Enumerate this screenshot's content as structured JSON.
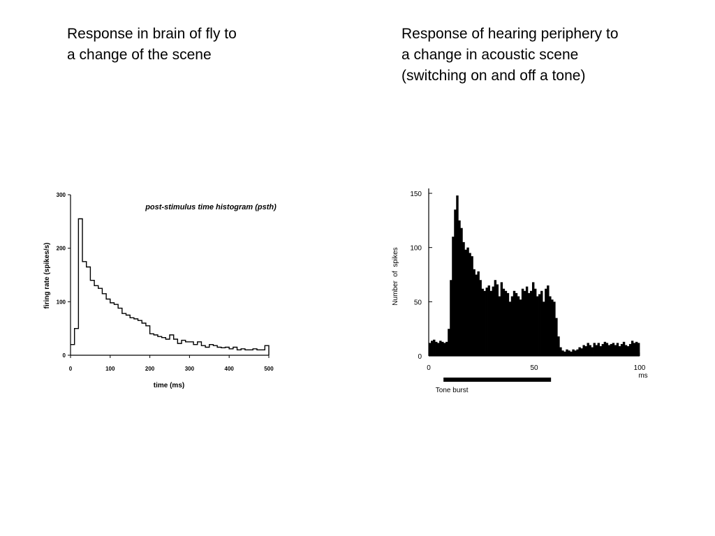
{
  "slide": {
    "left_caption": [
      "Response in brain of fly to",
      "a change of the scene"
    ],
    "right_caption": [
      "Response of hearing periphery to",
      "a change in acoustic scene",
      "(switching on and off a tone)"
    ]
  },
  "chart_data": [
    {
      "type": "line",
      "style": "step-histogram",
      "title": "post-stimulus time histogram (psth)",
      "xlabel": "time (ms)",
      "ylabel": "firing rate (spikes/s)",
      "xlim": [
        0,
        500
      ],
      "ylim": [
        0,
        300
      ],
      "xticks": [
        0,
        100,
        200,
        300,
        400,
        500
      ],
      "yticks": [
        0,
        100,
        200,
        300
      ],
      "bin_width": 10,
      "bin_start": 0,
      "values": [
        20,
        50,
        255,
        175,
        165,
        140,
        130,
        125,
        115,
        105,
        98,
        95,
        88,
        78,
        75,
        70,
        68,
        65,
        60,
        55,
        40,
        38,
        35,
        33,
        30,
        38,
        30,
        22,
        28,
        25,
        25,
        20,
        25,
        18,
        15,
        20,
        18,
        15,
        14,
        15,
        12,
        15,
        10,
        12,
        10,
        10,
        12,
        10,
        10,
        18
      ],
      "grid": false,
      "legend": "none"
    },
    {
      "type": "bar",
      "style": "filled-histogram",
      "xlabel": "ms",
      "ylabel": "Number  of  spikes",
      "xlim": [
        0,
        100
      ],
      "ylim": [
        0,
        150
      ],
      "xticks": [
        0,
        50,
        100
      ],
      "yticks": [
        0,
        50,
        100,
        150
      ],
      "bin_width": 1,
      "bin_start": 0,
      "values": [
        12,
        14,
        15,
        13,
        12,
        14,
        13,
        12,
        13,
        25,
        70,
        110,
        135,
        148,
        125,
        118,
        105,
        98,
        100,
        95,
        92,
        80,
        75,
        78,
        70,
        62,
        60,
        63,
        65,
        60,
        64,
        70,
        66,
        55,
        68,
        62,
        60,
        58,
        50,
        55,
        60,
        58,
        55,
        52,
        62,
        60,
        64,
        58,
        60,
        68,
        62,
        55,
        57,
        60,
        50,
        62,
        65,
        55,
        52,
        50,
        35,
        18,
        8,
        5,
        4,
        6,
        5,
        4,
        6,
        5,
        6,
        8,
        7,
        10,
        9,
        12,
        10,
        8,
        12,
        10,
        12,
        9,
        11,
        13,
        12,
        10,
        11,
        12,
        10,
        12,
        9,
        11,
        13,
        10,
        9,
        11,
        14,
        12,
        13,
        12
      ],
      "annotation": {
        "label": "Tone burst",
        "x_start": 7,
        "x_end": 58
      },
      "grid": false,
      "legend": "none"
    }
  ]
}
